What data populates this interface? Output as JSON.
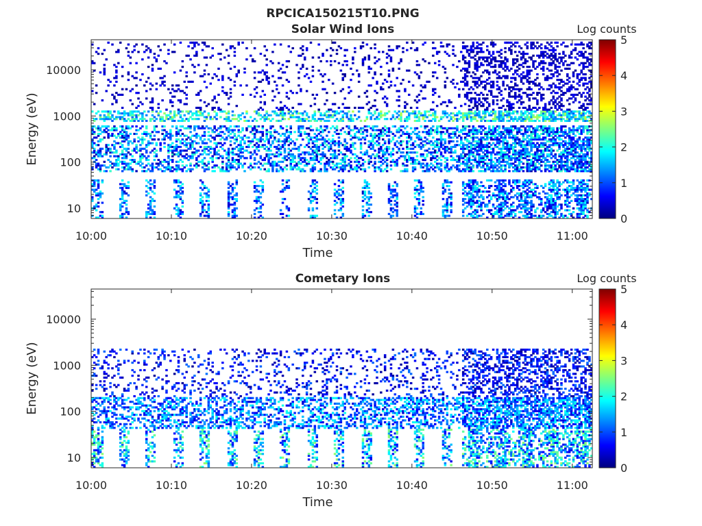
{
  "figure": {
    "title": "RPCICA150215T10.PNG"
  },
  "colorscale": [
    "#00007f",
    "#0000ff",
    "#007fff",
    "#00ffff",
    "#7fff7f",
    "#ffff00",
    "#ff7f00",
    "#ff0000",
    "#7f0000"
  ],
  "chart_data": [
    {
      "type": "heatmap",
      "title": "Solar Wind Ions",
      "xlabel": "Time",
      "ylabel": "Energy (eV)",
      "colorbar_label": "Log counts",
      "x_ticks": [
        "10:00",
        "10:10",
        "10:20",
        "10:30",
        "10:40",
        "10:50",
        "11:00"
      ],
      "x_tick_minutes": [
        0,
        10,
        20,
        30,
        40,
        50,
        60
      ],
      "xlim_minutes": [
        0,
        62.5
      ],
      "y_scale": "log",
      "y_ticks": [
        "10",
        "100",
        "1000",
        "10000"
      ],
      "y_tick_values": [
        10,
        100,
        1000,
        10000
      ],
      "ylim": [
        6,
        45000
      ],
      "clim": [
        0,
        5
      ],
      "colorbar_ticks": [
        "0",
        "1",
        "2",
        "3",
        "4",
        "5"
      ],
      "features": [
        {
          "energy_range": [
            6,
            40
          ],
          "log_counts": [
            0.3,
            2.0
          ],
          "note_pulsed": true
        },
        {
          "energy_range": [
            60,
            600
          ],
          "log_counts": [
            0.2,
            2.2
          ]
        },
        {
          "energy_range": [
            700,
            1200
          ],
          "log_counts": [
            1.0,
            2.8
          ]
        },
        {
          "energy_range": [
            1200,
            40000
          ],
          "log_counts": [
            0.1,
            0.6
          ]
        }
      ]
    },
    {
      "type": "heatmap",
      "title": "Cometary Ions",
      "xlabel": "Time",
      "ylabel": "Energy (eV)",
      "colorbar_label": "Log counts",
      "x_ticks": [
        "10:00",
        "10:10",
        "10:20",
        "10:30",
        "10:40",
        "10:50",
        "11:00"
      ],
      "x_tick_minutes": [
        0,
        10,
        20,
        30,
        40,
        50,
        60
      ],
      "xlim_minutes": [
        0,
        62.5
      ],
      "y_scale": "log",
      "y_ticks": [
        "10",
        "100",
        "1000",
        "10000"
      ],
      "y_tick_values": [
        10,
        100,
        1000,
        10000
      ],
      "ylim": [
        6,
        45000
      ],
      "clim": [
        0,
        5
      ],
      "colorbar_ticks": [
        "0",
        "1",
        "2",
        "3",
        "4",
        "5"
      ],
      "features": [
        {
          "energy_range": [
            6,
            40
          ],
          "log_counts": [
            0.5,
            2.6
          ],
          "note_pulsed": true
        },
        {
          "energy_range": [
            40,
            200
          ],
          "log_counts": [
            0.4,
            2.0
          ]
        },
        {
          "energy_range": [
            200,
            2200
          ],
          "log_counts": [
            0.1,
            1.2
          ]
        }
      ]
    }
  ]
}
